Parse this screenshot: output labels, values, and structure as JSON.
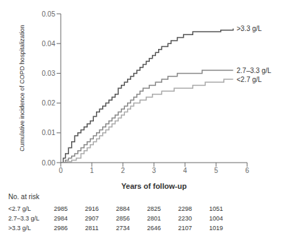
{
  "chart_data": {
    "type": "step",
    "xlabel": "Years of follow-up",
    "ylabel": "Cumulative incidence of COPD hospitalization",
    "xlim": [
      0,
      6
    ],
    "ylim": [
      0,
      0.05
    ],
    "xticks": [
      0,
      1,
      2,
      3,
      4,
      5,
      6
    ],
    "yticks": [
      {
        "value": 0,
        "label": "0.00"
      },
      0.01,
      0.02,
      0.03,
      0.04,
      0.05
    ],
    "series": [
      {
        "name": ">3.3 g/L",
        "color": "#555555",
        "x": [
          0,
          0.08,
          0.15,
          0.25,
          0.35,
          0.45,
          0.55,
          0.65,
          0.75,
          0.85,
          0.95,
          1.05,
          1.15,
          1.25,
          1.35,
          1.45,
          1.55,
          1.65,
          1.75,
          1.85,
          1.95,
          2.05,
          2.15,
          2.25,
          2.35,
          2.45,
          2.55,
          2.65,
          2.75,
          2.85,
          2.95,
          3.05,
          3.15,
          3.25,
          3.35,
          3.45,
          3.55,
          3.65,
          3.75,
          3.85,
          3.95,
          4.05,
          4.15,
          4.25,
          4.35,
          4.45,
          4.55,
          4.65,
          4.75,
          4.85,
          4.95,
          5.05,
          5.15,
          5.25,
          5.35,
          5.45,
          5.55
        ],
        "values": [
          0,
          0.0015,
          0.003,
          0.005,
          0.007,
          0.009,
          0.01,
          0.011,
          0.012,
          0.013,
          0.014,
          0.0155,
          0.017,
          0.018,
          0.019,
          0.02,
          0.021,
          0.022,
          0.023,
          0.025,
          0.026,
          0.027,
          0.028,
          0.029,
          0.03,
          0.031,
          0.032,
          0.033,
          0.034,
          0.035,
          0.036,
          0.037,
          0.038,
          0.039,
          0.039,
          0.04,
          0.041,
          0.041,
          0.042,
          0.042,
          0.043,
          0.043,
          0.043,
          0.044,
          0.044,
          0.044,
          0.044,
          0.044,
          0.044,
          0.044,
          0.044,
          0.044,
          0.0445,
          0.0445,
          0.0445,
          0.0445,
          0.045
        ]
      },
      {
        "name": "2.7–3.3 g/L",
        "color": "#888888",
        "x": [
          0,
          0.15,
          0.25,
          0.35,
          0.45,
          0.55,
          0.65,
          0.75,
          0.85,
          0.95,
          1.05,
          1.15,
          1.25,
          1.35,
          1.45,
          1.55,
          1.65,
          1.75,
          1.85,
          1.95,
          2.05,
          2.15,
          2.25,
          2.35,
          2.45,
          2.55,
          2.65,
          2.75,
          2.85,
          2.95,
          3.05,
          3.15,
          3.25,
          3.35,
          3.45,
          3.55,
          3.65,
          3.75,
          3.85,
          3.95,
          4.05,
          4.15,
          4.25,
          4.35,
          4.45,
          4.55,
          4.65,
          4.75,
          4.85,
          4.95,
          5.05,
          5.15,
          5.25,
          5.35,
          5.45,
          5.55
        ],
        "values": [
          0,
          0.0008,
          0.0015,
          0.0022,
          0.003,
          0.004,
          0.005,
          0.006,
          0.007,
          0.008,
          0.009,
          0.01,
          0.011,
          0.012,
          0.013,
          0.014,
          0.015,
          0.016,
          0.017,
          0.018,
          0.019,
          0.02,
          0.021,
          0.022,
          0.023,
          0.024,
          0.025,
          0.025,
          0.026,
          0.026,
          0.027,
          0.027,
          0.028,
          0.028,
          0.029,
          0.029,
          0.029,
          0.03,
          0.03,
          0.03,
          0.03,
          0.03,
          0.03,
          0.03,
          0.03,
          0.031,
          0.031,
          0.031,
          0.031,
          0.031,
          0.031,
          0.031,
          0.031,
          0.031,
          0.031,
          0.031
        ]
      },
      {
        "name": "<2.7 g/L",
        "color": "#aaaaaa",
        "x": [
          0,
          0.2,
          0.35,
          0.5,
          0.65,
          0.75,
          0.85,
          0.95,
          1.05,
          1.15,
          1.25,
          1.35,
          1.45,
          1.55,
          1.65,
          1.75,
          1.85,
          1.95,
          2.05,
          2.15,
          2.25,
          2.35,
          2.45,
          2.55,
          2.65,
          2.75,
          2.85,
          2.95,
          3.05,
          3.15,
          3.25,
          3.35,
          3.45,
          3.55,
          3.65,
          3.75,
          3.85,
          3.95,
          4.05,
          4.15,
          4.25,
          4.35,
          4.45,
          4.55,
          4.65,
          4.75,
          4.85,
          4.95,
          5.05,
          5.15,
          5.25,
          5.35,
          5.45,
          5.55
        ],
        "values": [
          0,
          0.0003,
          0.0008,
          0.0015,
          0.003,
          0.004,
          0.005,
          0.006,
          0.007,
          0.008,
          0.009,
          0.01,
          0.011,
          0.012,
          0.013,
          0.014,
          0.015,
          0.016,
          0.017,
          0.018,
          0.019,
          0.02,
          0.02,
          0.021,
          0.021,
          0.022,
          0.022,
          0.023,
          0.023,
          0.023,
          0.024,
          0.024,
          0.024,
          0.024,
          0.025,
          0.025,
          0.025,
          0.025,
          0.025,
          0.025,
          0.026,
          0.026,
          0.026,
          0.026,
          0.027,
          0.027,
          0.027,
          0.027,
          0.027,
          0.027,
          0.028,
          0.028,
          0.028,
          0.028
        ]
      }
    ],
    "table": {
      "title": "No. at risk",
      "rows": [
        {
          "name": "<2.7 g/L",
          "values": [
            2985,
            2916,
            2884,
            2825,
            2298,
            1051
          ]
        },
        {
          "name": "2.7–3.3 g/L",
          "values": [
            2984,
            2907,
            2856,
            2801,
            2230,
            1004
          ]
        },
        {
          "name": ">3.3 g/L",
          "values": [
            2986,
            2811,
            2734,
            2646,
            2107,
            1019
          ]
        }
      ]
    }
  }
}
